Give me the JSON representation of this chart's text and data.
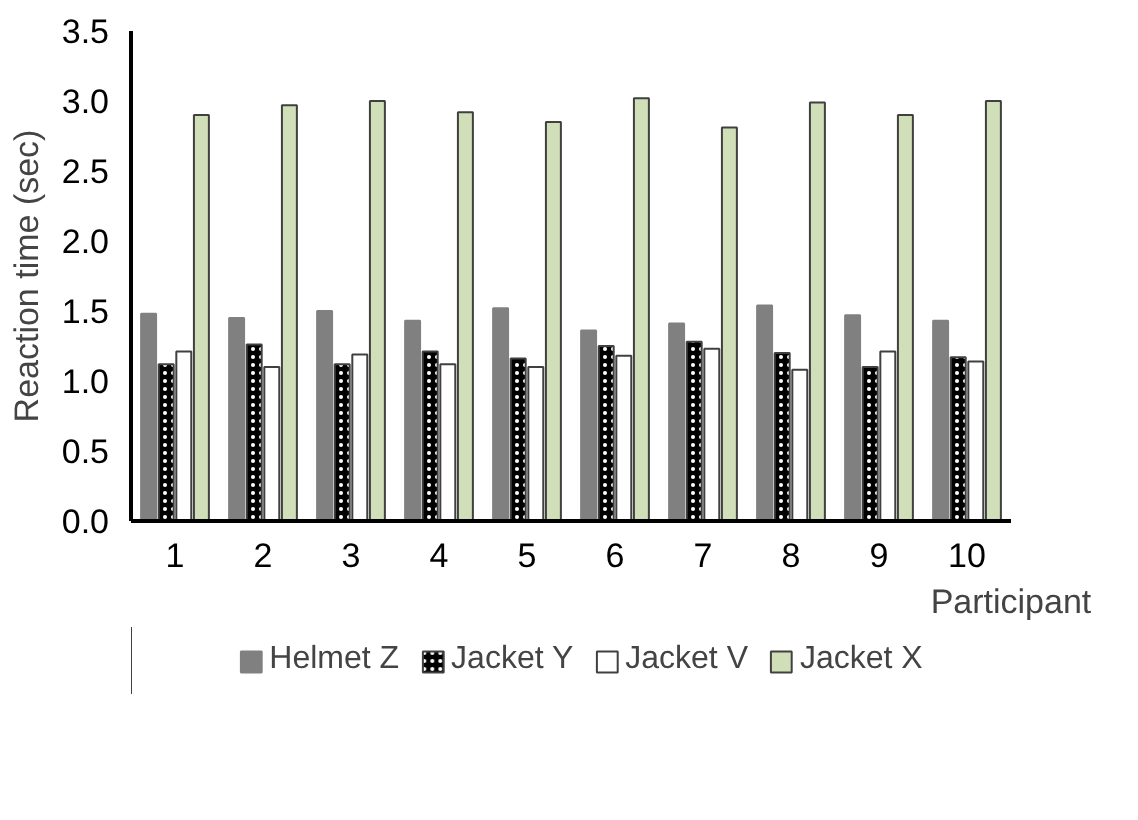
{
  "chart_data": {
    "type": "bar",
    "xlabel": "Participant",
    "ylabel": "Reaction time (sec)",
    "categories": [
      "1",
      "2",
      "3",
      "4",
      "5",
      "6",
      "7",
      "8",
      "9",
      "10"
    ],
    "series": [
      {
        "name": "Helmet Z",
        "color": "#808080",
        "values": [
          1.48,
          1.45,
          1.5,
          1.43,
          1.52,
          1.36,
          1.41,
          1.54,
          1.47,
          1.43
        ]
      },
      {
        "name": "Jacket Y",
        "color": "#000000",
        "values": [
          1.12,
          1.26,
          1.12,
          1.21,
          1.16,
          1.25,
          1.28,
          1.2,
          1.1,
          1.17
        ]
      },
      {
        "name": "Jacket V",
        "color": "#ffffff",
        "values": [
          1.21,
          1.1,
          1.19,
          1.12,
          1.1,
          1.18,
          1.23,
          1.08,
          1.21,
          1.14
        ]
      },
      {
        "name": "Jacket X",
        "color": "#d0dfb8",
        "values": [
          2.9,
          2.97,
          3.0,
          2.92,
          2.85,
          3.02,
          2.81,
          2.99,
          2.9,
          3.0
        ]
      }
    ],
    "ylim": [
      0,
      3.5
    ],
    "yticks": [
      {
        "value": 0,
        "label": "0.0"
      },
      {
        "value": 0.5,
        "label": "0.5"
      },
      {
        "value": 1,
        "label": "1.0"
      },
      {
        "value": 1.5,
        "label": "1.5"
      },
      {
        "value": 2,
        "label": "2.0"
      },
      {
        "value": 2.5,
        "label": "2.5"
      },
      {
        "value": 3,
        "label": "3.0"
      },
      {
        "value": 3.5,
        "label": "3.5"
      }
    ],
    "grid": false,
    "legend": "bottom"
  }
}
